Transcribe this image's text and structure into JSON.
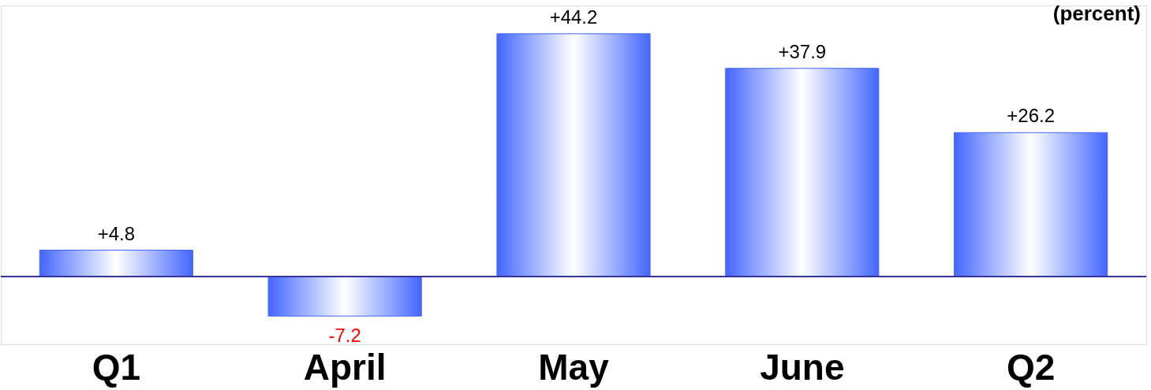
{
  "chart_data": {
    "type": "bar",
    "ylabel": "(percent)",
    "categories": [
      "Q1",
      "April",
      "May",
      "June",
      "Q2"
    ],
    "values": [
      4.8,
      -7.2,
      44.2,
      37.9,
      26.2
    ],
    "value_labels": [
      "+4.8",
      "-7.2",
      "+44.2",
      "+37.9",
      "+26.2"
    ],
    "color": "#4466ff",
    "ref_lines": [
      {
        "axis": "y",
        "value": 0,
        "color": "#333399"
      }
    ]
  }
}
